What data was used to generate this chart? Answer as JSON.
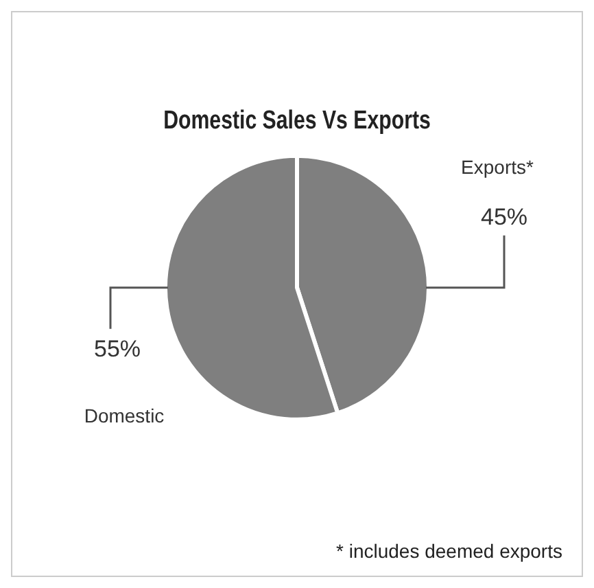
{
  "chart_data": {
    "type": "pie",
    "title": "Domestic Sales Vs Exports",
    "categories": [
      "Exports*",
      "Domestic"
    ],
    "values": [
      45,
      55
    ],
    "value_labels": [
      "45%",
      "55%"
    ],
    "colors": [
      "#7f7f7f",
      "#7f7f7f"
    ],
    "legend": false,
    "annotations": [
      "* includes deemed exports"
    ]
  }
}
